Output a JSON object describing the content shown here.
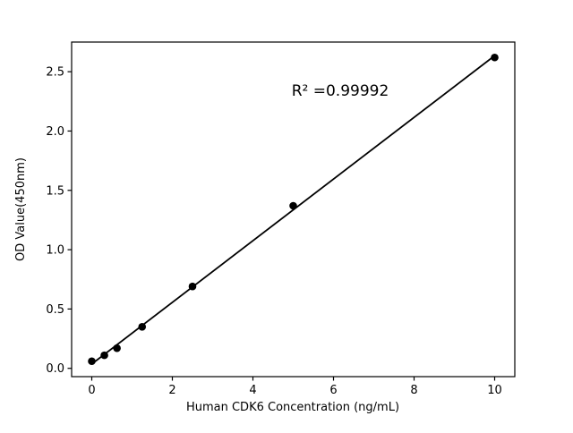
{
  "figure": {
    "background": "#ffffff"
  },
  "chart_data": {
    "type": "scatter",
    "title": "",
    "xlabel": "Human CDK6 Concentration (ng/mL)",
    "ylabel": "OD Value(450nm)",
    "annotation": "R² =0.99992",
    "x": [
      0,
      0.3125,
      0.625,
      1.25,
      2.5,
      5,
      10
    ],
    "y": [
      0.06,
      0.11,
      0.17,
      0.35,
      0.69,
      1.37,
      2.62
    ],
    "fit_line": true,
    "xlim": [
      -0.5,
      10.5
    ],
    "ylim": [
      -0.07,
      2.75
    ],
    "xticks": [
      0,
      2,
      4,
      6,
      8,
      10
    ],
    "xtick_labels": [
      "0",
      "2",
      "4",
      "6",
      "8",
      "10"
    ],
    "yticks": [
      0.0,
      0.5,
      1.0,
      1.5,
      2.0,
      2.5
    ],
    "ytick_labels": [
      "0.0",
      "0.5",
      "1.0",
      "1.5",
      "2.0",
      "2.5"
    ],
    "grid": false,
    "legend": null,
    "marker_color": "#000000",
    "line_color": "#000000",
    "axis_color": "#000000"
  }
}
